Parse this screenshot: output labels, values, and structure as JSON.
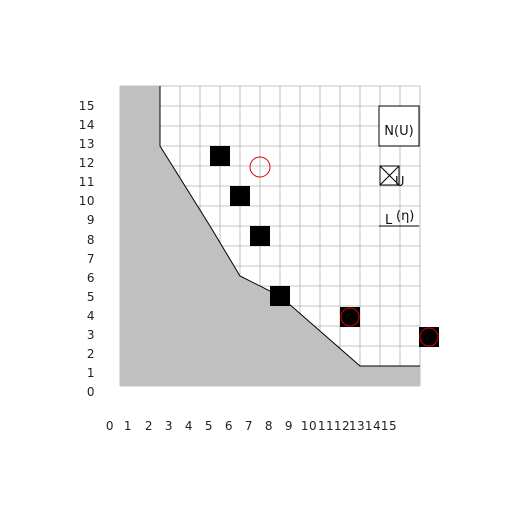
{
  "chart_data": {
    "type": "diagram",
    "description_labels": {
      "legend_box": "N(U)",
      "legend_cross": "U",
      "legend_line_L": "L",
      "legend_line_eta": "(η)"
    },
    "x_tick_labels": [
      "0",
      "1",
      "2",
      "3",
      "4",
      "5",
      "6",
      "7",
      "8",
      "9",
      "10",
      "11",
      "12",
      "13",
      "14",
      "15"
    ],
    "y_tick_labels": [
      "0",
      "1",
      "2",
      "3",
      "4",
      "5",
      "6",
      "7",
      "8",
      "9",
      "10",
      "11",
      "12",
      "13",
      "14",
      "15"
    ],
    "grid_x_range": [
      0,
      15
    ],
    "grid_y_range": [
      0,
      15
    ],
    "region_boundary": [
      [
        2,
        15
      ],
      [
        2,
        12
      ],
      [
        4.5,
        8
      ],
      [
        6,
        5.5
      ],
      [
        8,
        4.5
      ],
      [
        12,
        1
      ],
      [
        15,
        1
      ]
    ],
    "squares": [
      [
        5,
        11.5
      ],
      [
        6,
        9.5
      ],
      [
        7,
        7.5
      ],
      [
        8,
        4.5
      ]
    ],
    "circle_outline": [
      [
        6.5,
        11
      ]
    ],
    "filled_circle_squares": [
      [
        11,
        3.5
      ],
      [
        16,
        2.5
      ]
    ],
    "colors": {
      "region": "#c0c0c0",
      "grid": "#b0b0b0",
      "marker": "#000000",
      "circle": "#e00000"
    }
  }
}
